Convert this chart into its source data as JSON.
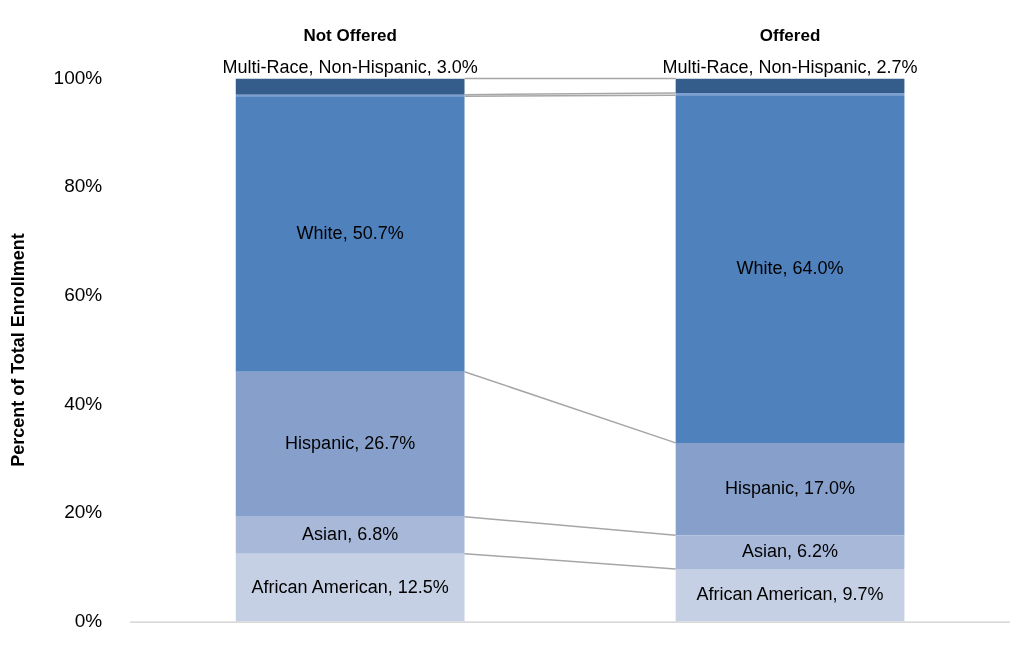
{
  "chart_data": {
    "type": "bar",
    "stacked": true,
    "ylabel": "Percent of Total Enrollment",
    "categories": [
      "Not Offered",
      "Offered"
    ],
    "series": [
      {
        "color": "#c5d0e4",
        "values": [
          12.5,
          9.7
        ],
        "value_labels": [
          "African American, 12.5%",
          "African American, 9.7%"
        ]
      },
      {
        "color": "#a7b8d9",
        "values": [
          6.8,
          6.2
        ],
        "value_labels": [
          "Asian, 6.8%",
          "Asian, 6.2%"
        ]
      },
      {
        "color": "#87a0cb",
        "values": [
          26.7,
          17.0
        ],
        "value_labels": [
          "Hispanic, 26.7%",
          "Hispanic, 17.0%"
        ]
      },
      {
        "color": "#4f81bd",
        "values": [
          50.7,
          64.0
        ],
        "value_labels": [
          "White, 50.7%",
          "White, 64.0%"
        ]
      },
      {
        "color": "#7d9fcf",
        "values": [
          0.3,
          0.4
        ]
      },
      {
        "color": "#355d8c",
        "values": [
          3.0,
          2.7
        ],
        "value_labels": [
          "Multi-Race, Non-Hispanic, 3.0%",
          "Multi-Race, Non-Hispanic, 2.7%"
        ]
      }
    ],
    "ylim": [
      0,
      100
    ],
    "yticks": [
      {
        "value": 0,
        "label": "0%"
      },
      {
        "value": 20,
        "label": "20%"
      },
      {
        "value": 40,
        "label": "40%"
      },
      {
        "value": 60,
        "label": "60%"
      },
      {
        "value": 80,
        "label": "80%"
      },
      {
        "value": 100,
        "label": "100%"
      }
    ],
    "grid": false,
    "legend": false
  }
}
